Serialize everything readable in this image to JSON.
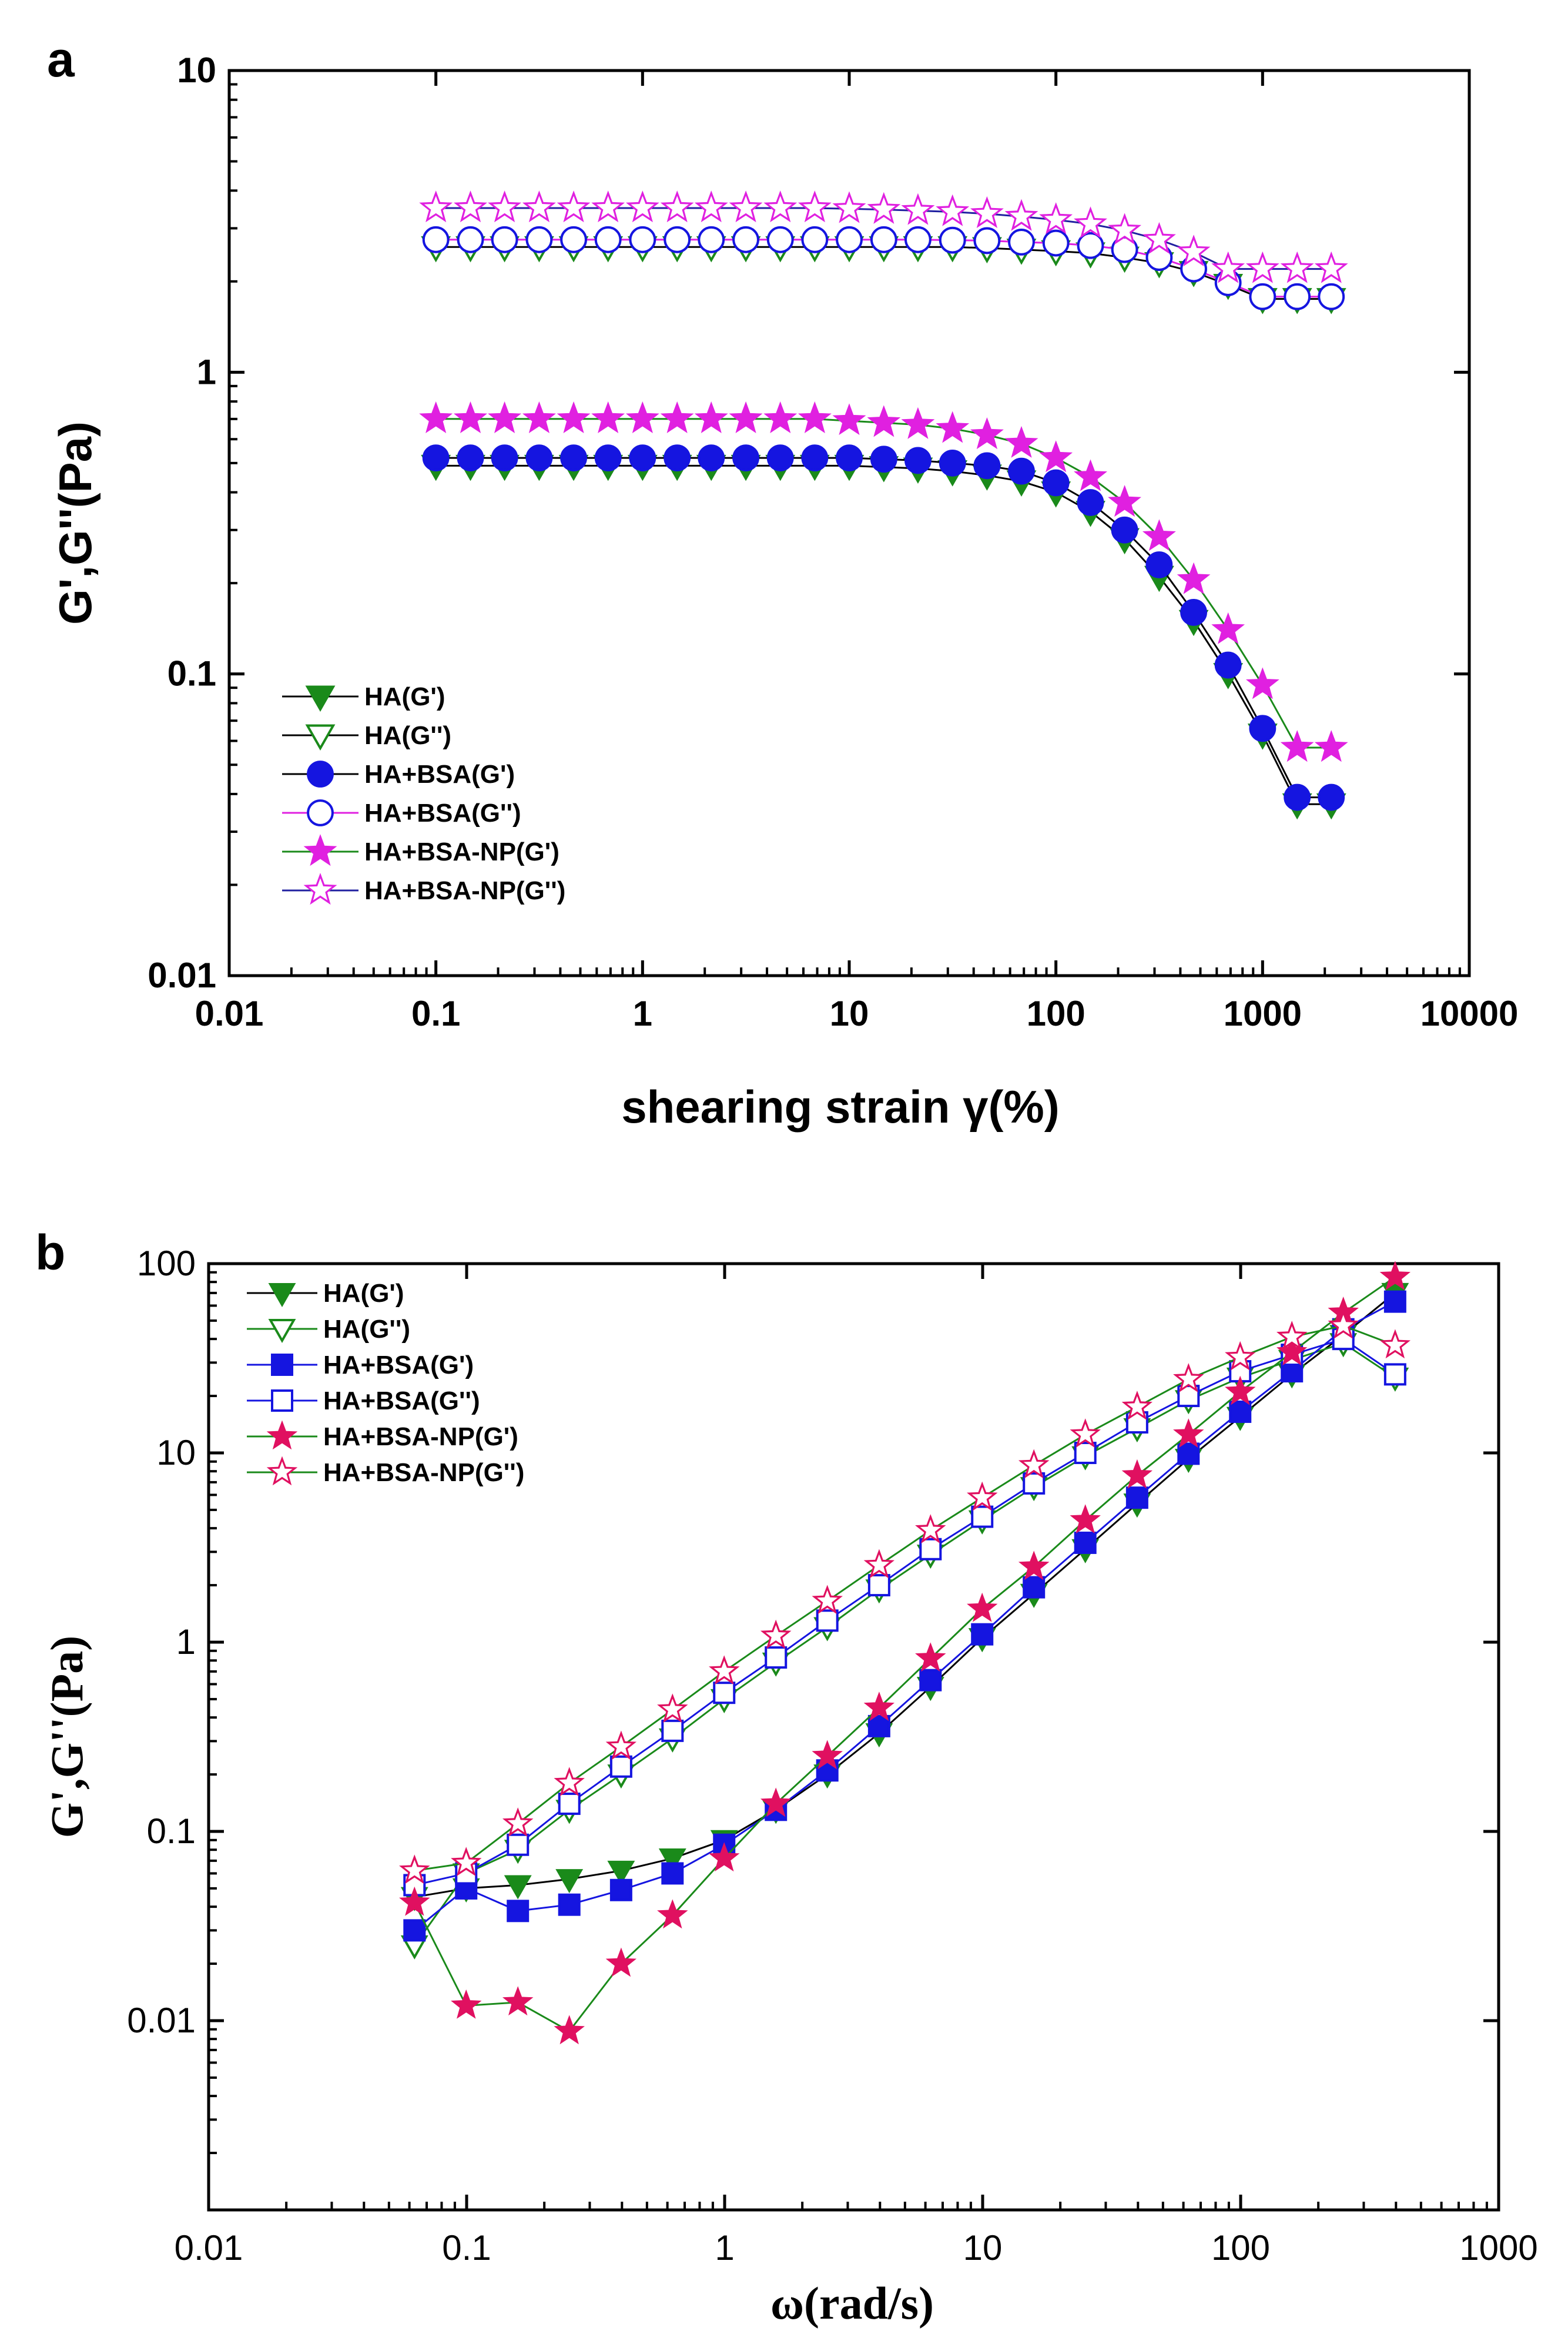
{
  "chart_data": [
    {
      "panel_label": "a",
      "type": "scatter",
      "xscale": "log",
      "yscale": "log",
      "xlim": [
        0.01,
        10000
      ],
      "ylim": [
        0.01,
        10
      ],
      "xticks": [
        "0.01",
        "0.1",
        "1",
        "10",
        "100",
        "1000",
        "10000"
      ],
      "yticks": [
        "0.01",
        "0.1",
        "1",
        "10"
      ],
      "xlabel": "shearing strain γ(%)",
      "ylabel": "G',G''(Pa)",
      "legend_position": "lower-left",
      "series": [
        {
          "name": "HA(G')",
          "marker": "triangle-down",
          "filled": true,
          "color": "#1a8a1a",
          "line_color": "#000000",
          "x": [
            0.1,
            0.147,
            0.215,
            0.316,
            0.464,
            0.681,
            1,
            1.47,
            2.15,
            3.16,
            4.64,
            6.81,
            10,
            14.7,
            21.5,
            31.6,
            46.4,
            68.1,
            100,
            147,
            215,
            316,
            464,
            681,
            1000,
            1470,
            2150
          ],
          "y": [
            0.49,
            0.49,
            0.49,
            0.49,
            0.49,
            0.49,
            0.49,
            0.49,
            0.49,
            0.49,
            0.49,
            0.49,
            0.49,
            0.485,
            0.48,
            0.47,
            0.455,
            0.435,
            0.4,
            0.345,
            0.28,
            0.21,
            0.15,
            0.1,
            0.063,
            0.037,
            0.037
          ]
        },
        {
          "name": "HA(G'')",
          "marker": "triangle-down",
          "filled": false,
          "color": "#1a8a1a",
          "line_color": "#000000",
          "x": [
            0.1,
            0.147,
            0.215,
            0.316,
            0.464,
            0.681,
            1,
            1.47,
            2.15,
            3.16,
            4.64,
            6.81,
            10,
            14.7,
            21.5,
            31.6,
            46.4,
            68.1,
            100,
            147,
            215,
            316,
            464,
            681,
            1000,
            1470,
            2150
          ],
          "y": [
            2.6,
            2.6,
            2.6,
            2.6,
            2.6,
            2.6,
            2.6,
            2.6,
            2.6,
            2.6,
            2.6,
            2.6,
            2.6,
            2.6,
            2.6,
            2.6,
            2.58,
            2.55,
            2.52,
            2.48,
            2.4,
            2.3,
            2.15,
            1.95,
            1.75,
            1.75,
            1.75
          ]
        },
        {
          "name": "HA+BSA(G')",
          "marker": "circle",
          "filled": true,
          "color": "#1515e0",
          "line_color": "#000000",
          "x": [
            0.1,
            0.147,
            0.215,
            0.316,
            0.464,
            0.681,
            1,
            1.47,
            2.15,
            3.16,
            4.64,
            6.81,
            10,
            14.7,
            21.5,
            31.6,
            46.4,
            68.1,
            100,
            147,
            215,
            316,
            464,
            681,
            1000,
            1470,
            2150
          ],
          "y": [
            0.52,
            0.52,
            0.52,
            0.52,
            0.52,
            0.52,
            0.52,
            0.52,
            0.52,
            0.52,
            0.52,
            0.52,
            0.52,
            0.515,
            0.51,
            0.5,
            0.49,
            0.47,
            0.43,
            0.37,
            0.3,
            0.23,
            0.16,
            0.107,
            0.066,
            0.039,
            0.039
          ]
        },
        {
          "name": "HA+BSA(G'')",
          "marker": "circle",
          "filled": false,
          "color": "#1515e0",
          "line_color": "#e020e0",
          "x": [
            0.1,
            0.147,
            0.215,
            0.316,
            0.464,
            0.681,
            1,
            1.47,
            2.15,
            3.16,
            4.64,
            6.81,
            10,
            14.7,
            21.5,
            31.6,
            46.4,
            68.1,
            100,
            147,
            215,
            316,
            464,
            681,
            1000,
            1470,
            2150
          ],
          "y": [
            2.75,
            2.75,
            2.75,
            2.75,
            2.75,
            2.75,
            2.75,
            2.75,
            2.75,
            2.75,
            2.75,
            2.75,
            2.75,
            2.75,
            2.75,
            2.74,
            2.73,
            2.7,
            2.68,
            2.63,
            2.55,
            2.4,
            2.2,
            1.98,
            1.78,
            1.78,
            1.78
          ]
        },
        {
          "name": "HA+BSA-NP(G')",
          "marker": "star",
          "filled": true,
          "color": "#e020e0",
          "line_color": "#1a8a1a",
          "x": [
            0.1,
            0.147,
            0.215,
            0.316,
            0.464,
            0.681,
            1,
            1.47,
            2.15,
            3.16,
            4.64,
            6.81,
            10,
            14.7,
            21.5,
            31.6,
            46.4,
            68.1,
            100,
            147,
            215,
            316,
            464,
            681,
            1000,
            1470,
            2150
          ],
          "y": [
            0.7,
            0.7,
            0.7,
            0.7,
            0.7,
            0.7,
            0.7,
            0.7,
            0.7,
            0.7,
            0.7,
            0.7,
            0.69,
            0.68,
            0.67,
            0.65,
            0.62,
            0.58,
            0.52,
            0.45,
            0.37,
            0.285,
            0.205,
            0.14,
            0.092,
            0.057,
            0.057
          ]
        },
        {
          "name": "HA+BSA-NP(G'')",
          "marker": "star",
          "filled": false,
          "color": "#e020e0",
          "line_color": "#2020a0",
          "x": [
            0.1,
            0.147,
            0.215,
            0.316,
            0.464,
            0.681,
            1,
            1.47,
            2.15,
            3.16,
            4.64,
            6.81,
            10,
            14.7,
            21.5,
            31.6,
            46.4,
            68.1,
            100,
            147,
            215,
            316,
            464,
            681,
            1000,
            1470,
            2150
          ],
          "y": [
            3.5,
            3.5,
            3.5,
            3.5,
            3.5,
            3.5,
            3.5,
            3.5,
            3.5,
            3.5,
            3.5,
            3.5,
            3.48,
            3.46,
            3.43,
            3.4,
            3.35,
            3.28,
            3.2,
            3.1,
            2.95,
            2.75,
            2.5,
            2.2,
            2.2,
            2.2,
            2.2
          ]
        }
      ]
    },
    {
      "panel_label": "b",
      "type": "scatter",
      "xscale": "log",
      "yscale": "log",
      "xlim": [
        0.01,
        1000
      ],
      "ylim": [
        0.001,
        100
      ],
      "xticks": [
        "0.01",
        "0.1",
        "1",
        "10",
        "100",
        "1000"
      ],
      "yticks": [
        "0.01",
        "0.1",
        "1",
        "10",
        "100"
      ],
      "xlabel": "ω(rad/s)",
      "ylabel": "G',G''(Pa)",
      "legend_position": "top-left",
      "series": [
        {
          "name": "HA(G')",
          "marker": "triangle-down",
          "filled": true,
          "color": "#1a8a1a",
          "line_color": "#000000",
          "x": [
            0.0628,
            0.0996,
            0.158,
            0.25,
            0.397,
            0.628,
            0.996,
            1.58,
            2.5,
            3.97,
            6.28,
            9.96,
            15.8,
            25,
            39.7,
            62.8,
            99.6,
            158,
            250,
            397
          ],
          "y": [
            0.045,
            0.05,
            0.052,
            0.056,
            0.062,
            0.072,
            0.09,
            0.13,
            0.2,
            0.33,
            0.58,
            1.05,
            1.8,
            3.1,
            5.4,
            9.3,
            15.5,
            26,
            42,
            70
          ]
        },
        {
          "name": "HA(G'')",
          "marker": "triangle-down",
          "filled": false,
          "color": "#1a8a1a",
          "line_color": "#1a8a1a",
          "x": [
            0.0628,
            0.0996,
            0.158,
            0.25,
            0.397,
            0.628,
            0.996,
            1.58,
            2.5,
            3.97,
            6.28,
            9.96,
            15.8,
            25,
            39.7,
            62.8,
            99.6,
            158,
            250,
            397
          ],
          "y": [
            0.025,
            0.06,
            0.08,
            0.13,
            0.2,
            0.31,
            0.5,
            0.78,
            1.2,
            1.9,
            2.9,
            4.4,
            6.6,
            9.6,
            13.5,
            19,
            25,
            31,
            38,
            25
          ]
        },
        {
          "name": "HA+BSA(G')",
          "marker": "square",
          "filled": true,
          "color": "#1515e0",
          "line_color": "#1515e0",
          "x": [
            0.0628,
            0.0996,
            0.158,
            0.25,
            0.397,
            0.628,
            0.996,
            1.58,
            2.5,
            3.97,
            6.28,
            9.96,
            15.8,
            25,
            39.7,
            62.8,
            99.6,
            158,
            250,
            397
          ],
          "y": [
            0.03,
            0.05,
            0.038,
            0.041,
            0.049,
            0.06,
            0.085,
            0.13,
            0.21,
            0.36,
            0.63,
            1.1,
            1.95,
            3.35,
            5.8,
            9.9,
            16.5,
            27,
            45,
            63
          ]
        },
        {
          "name": "HA+BSA(G'')",
          "marker": "square",
          "filled": false,
          "color": "#1515e0",
          "line_color": "#1515e0",
          "x": [
            0.0628,
            0.0996,
            0.158,
            0.25,
            0.397,
            0.628,
            0.996,
            1.58,
            2.5,
            3.97,
            6.28,
            9.96,
            15.8,
            25,
            39.7,
            62.8,
            99.6,
            158,
            250,
            397
          ],
          "y": [
            0.052,
            0.06,
            0.085,
            0.14,
            0.22,
            0.34,
            0.54,
            0.83,
            1.3,
            2.0,
            3.1,
            4.6,
            6.9,
            10,
            14.5,
            20,
            27,
            33,
            40,
            26
          ]
        },
        {
          "name": "HA+BSA-NP(G')",
          "marker": "star",
          "filled": true,
          "color": "#e01060",
          "line_color": "#1a8a1a",
          "x": [
            0.0628,
            0.0996,
            0.158,
            0.25,
            0.397,
            0.628,
            0.996,
            1.58,
            2.5,
            3.97,
            6.28,
            9.96,
            15.8,
            25,
            39.7,
            62.8,
            99.6,
            158,
            250,
            397
          ],
          "y": [
            0.042,
            0.012,
            0.0125,
            0.0088,
            0.02,
            0.036,
            0.072,
            0.14,
            0.25,
            0.45,
            0.82,
            1.5,
            2.5,
            4.4,
            7.6,
            12.5,
            21,
            34,
            55,
            85
          ]
        },
        {
          "name": "HA+BSA-NP(G'')",
          "marker": "star",
          "filled": false,
          "color": "#e01060",
          "line_color": "#1a8a1a",
          "x": [
            0.0628,
            0.0996,
            0.158,
            0.25,
            0.397,
            0.628,
            0.996,
            1.58,
            2.5,
            3.97,
            6.28,
            9.96,
            15.8,
            25,
            39.7,
            62.8,
            99.6,
            158,
            250,
            397
          ],
          "y": [
            0.062,
            0.068,
            0.11,
            0.18,
            0.28,
            0.44,
            0.7,
            1.08,
            1.65,
            2.55,
            3.9,
            5.8,
            8.6,
            12.5,
            17.5,
            24.5,
            32,
            41,
            47,
            37
          ]
        }
      ]
    }
  ]
}
